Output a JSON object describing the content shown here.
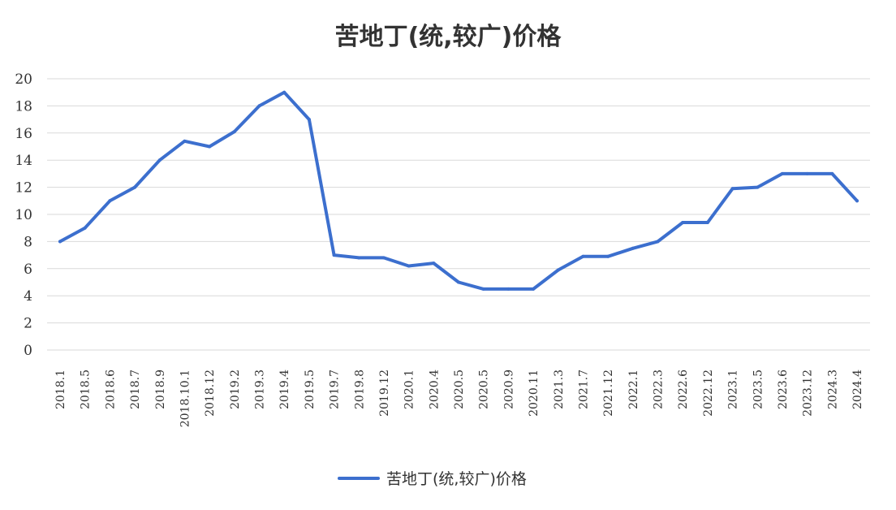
{
  "chart_data": {
    "type": "line",
    "title": "苦地丁(统,较广)价格",
    "xlabel": "",
    "ylabel": "",
    "ylim": [
      0,
      20
    ],
    "yticks": [
      0,
      2,
      4,
      6,
      8,
      10,
      12,
      14,
      16,
      18,
      20
    ],
    "grid": true,
    "legend_position": "bottom",
    "categories": [
      "2018.1",
      "2018.5",
      "2018.6",
      "2018.7",
      "2018.9",
      "2018.10.1",
      "2018.12",
      "2019.2",
      "2019.3",
      "2019.4",
      "2019.5",
      "2019.7",
      "2019.8",
      "2019.12",
      "2020.1",
      "2020.4",
      "2020.5",
      "2020.5",
      "2020.9",
      "2020.11",
      "2021.3",
      "2021.7",
      "2021.12",
      "2022.1",
      "2022.3",
      "2022.6",
      "2022.12",
      "2023.1",
      "2023.5",
      "2023.6",
      "2023.12",
      "2024.3",
      "2024.4"
    ],
    "series": [
      {
        "name": "苦地丁(统,较广)价格",
        "color": "#3c6fce",
        "values": [
          8,
          9,
          11,
          12,
          14,
          15.4,
          15,
          16.1,
          18,
          19,
          17,
          7,
          6.8,
          6.8,
          6.2,
          6.4,
          5,
          4.5,
          4.5,
          4.5,
          5.9,
          6.9,
          6.9,
          7.5,
          8,
          9.4,
          9.4,
          11.9,
          12,
          13,
          13,
          13,
          11
        ]
      }
    ]
  }
}
